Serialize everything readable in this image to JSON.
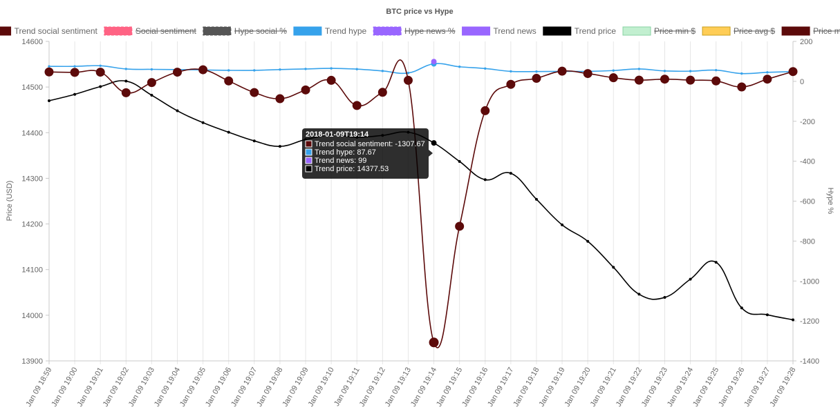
{
  "chart_data": {
    "type": "line",
    "title": "BTC price vs Hype",
    "ylabel_left": "Price (USD)",
    "ylabel_right": "Hype %",
    "ylim_left": [
      13900,
      14600
    ],
    "ylim_right": [
      -1400,
      200
    ],
    "yticks_left": [
      "14600",
      "14500",
      "14400",
      "14300",
      "14200",
      "14100",
      "14000",
      "13900"
    ],
    "yticks_right": [
      "200",
      "0",
      "-200",
      "-400",
      "-600",
      "-800",
      "-1000",
      "-1200",
      "-1400"
    ],
    "grid": "vertical",
    "legend_position": "top",
    "categories": [
      "Jan 09 18:59",
      "Jan 09 19:00",
      "Jan 09 19:01",
      "Jan 09 19:02",
      "Jan 09 19:03",
      "Jan 09 19:04",
      "Jan 09 19:05",
      "Jan 09 19:06",
      "Jan 09 19:07",
      "Jan 09 19:08",
      "Jan 09 19:09",
      "Jan 09 19:10",
      "Jan 09 19:11",
      "Jan 09 19:12",
      "Jan 09 19:13",
      "Jan 09 19:14",
      "Jan 09 19:15",
      "Jan 09 19:16",
      "Jan 09 19:17",
      "Jan 09 19:18",
      "Jan 09 19:19",
      "Jan 09 19:20",
      "Jan 09 19:21",
      "Jan 09 19:22",
      "Jan 09 19:23",
      "Jan 09 19:24",
      "Jan 09 19:25",
      "Jan 09 19:26",
      "Jan 09 19:27",
      "Jan 09 19:28"
    ],
    "legend": [
      {
        "name": "Trend social sentiment",
        "color": "#5c0a0a",
        "hidden": false
      },
      {
        "name": "Social sentiment",
        "color": "#ff6384",
        "hidden": true
      },
      {
        "name": "Hype social %",
        "color": "#555555",
        "hidden": true
      },
      {
        "name": "Trend hype",
        "color": "#36a2eb",
        "hidden": false
      },
      {
        "name": "Hype news %",
        "color": "#9966ff",
        "hidden": true
      },
      {
        "name": "Trend news",
        "color": "#9966ff",
        "hidden": false
      },
      {
        "name": "Trend price",
        "color": "#000000",
        "hidden": false
      },
      {
        "name": "Price min $",
        "color": "#c2efd0",
        "hidden": true
      },
      {
        "name": "Price avg $",
        "color": "#ffcd56",
        "hidden": true
      },
      {
        "name": "Price max $",
        "color": "#5c0a0a",
        "hidden": true
      }
    ],
    "series": [
      {
        "name": "Trend price",
        "axis": "left",
        "color": "#000000",
        "values": [
          14470,
          14484,
          14501,
          14513,
          14482,
          14448,
          14422,
          14401,
          14382,
          14370,
          14385,
          14395,
          14390,
          14394,
          14401,
          14377.53,
          14337,
          14297,
          14311,
          14254,
          14198,
          14162,
          14105,
          14046,
          14039,
          14079,
          14116,
          14016,
          14001,
          13990
        ]
      },
      {
        "name": "Trend hype",
        "axis": "right",
        "color": "#36a2eb",
        "values": [
          75,
          75,
          78,
          62,
          60,
          59,
          57,
          55,
          55,
          59,
          62,
          65,
          61,
          52,
          42,
          87.67,
          73,
          64,
          50,
          49,
          50,
          50,
          54,
          62,
          52,
          51,
          56,
          39,
          45,
          49
        ]
      },
      {
        "name": "Trend social sentiment",
        "axis": "right",
        "color": "#5c0a0a",
        "values": [
          47,
          45,
          46,
          -57,
          -6,
          46,
          58,
          2,
          -56,
          -87,
          -43,
          5,
          -121,
          -55,
          5,
          -1307.67,
          -726,
          -147,
          -15,
          15,
          51,
          39,
          18,
          6,
          11,
          6,
          2,
          -28,
          11,
          49
        ]
      },
      {
        "name": "Trend news",
        "axis": "right",
        "color": "#9966ff",
        "values": [
          null,
          null,
          null,
          null,
          null,
          null,
          null,
          null,
          null,
          null,
          null,
          null,
          null,
          null,
          null,
          99,
          null,
          null,
          null,
          null,
          null,
          null,
          null,
          null,
          null,
          null,
          null,
          null,
          null,
          null
        ]
      }
    ],
    "tooltip": {
      "title": "2018-01-09T19:14",
      "lines": [
        {
          "text": "Trend social sentiment: -1307.67",
          "color": "#5c0a0a"
        },
        {
          "text": "Trend hype: 87.67",
          "color": "#36a2eb"
        },
        {
          "text": "Trend news: 99",
          "color": "#9966ff"
        },
        {
          "text": "Trend price: 14377.53",
          "color": "#000000"
        }
      ]
    }
  }
}
